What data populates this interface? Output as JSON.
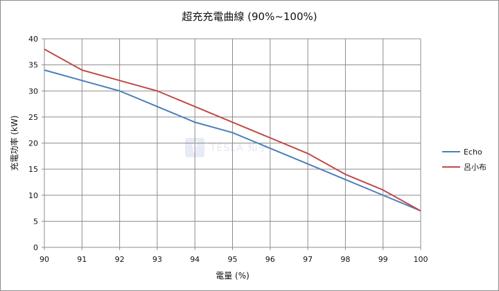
{
  "chart_data": {
    "type": "line",
    "title": "超充充電曲線 (90%~100%)",
    "xlabel": "電量 (%)",
    "ylabel": "充電功率 (kW)",
    "x": [
      90,
      91,
      92,
      93,
      94,
      95,
      96,
      97,
      98,
      99,
      100
    ],
    "xlim": [
      90,
      100
    ],
    "ylim": [
      0,
      40
    ],
    "yticks": [
      0,
      5,
      10,
      15,
      20,
      25,
      30,
      35,
      40
    ],
    "grid": true,
    "legend_position": "right",
    "series": [
      {
        "name": "Echo",
        "color": "#4a7ebb",
        "values": [
          34,
          32,
          30,
          27,
          24,
          22,
          19,
          16,
          13,
          10,
          7
        ]
      },
      {
        "name": "呂小布",
        "color": "#be4b48",
        "values": [
          38,
          34,
          32,
          30,
          27,
          24,
          21,
          18,
          14,
          11,
          7
        ]
      }
    ]
  },
  "watermark": {
    "logo": "f",
    "text": "TESLA 知乎"
  }
}
